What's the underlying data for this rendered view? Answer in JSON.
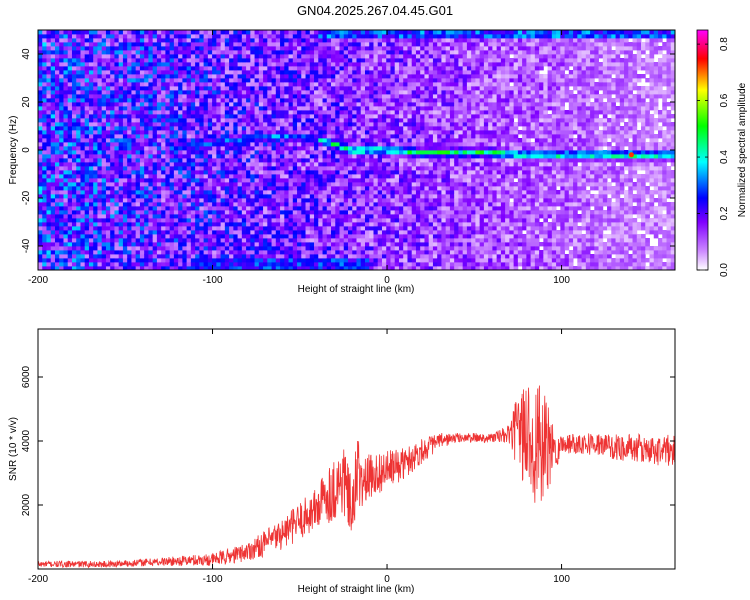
{
  "title": "GN04.2025.267.04.45.G01",
  "chart_data": [
    {
      "type": "heatmap",
      "xlabel": "Height of straight line (km)",
      "ylabel": "Frequency (Hz)",
      "xlim": [
        -200,
        165
      ],
      "ylim": [
        -50,
        50
      ],
      "xticks": [
        -200,
        -100,
        0,
        100
      ],
      "yticks": [
        -40,
        -20,
        0,
        20,
        40
      ],
      "colorbar": {
        "label": "Normalized spectral amplitude",
        "range": [
          0,
          0.85
        ],
        "ticks": [
          0.0,
          0.2,
          0.4,
          0.6,
          0.8
        ],
        "tick_labels": [
          "0.0",
          "0.2",
          "0.4",
          "0.6",
          "0.8"
        ],
        "colors": [
          "#ffffff",
          "#8000ff",
          "#0000ff",
          "#00ffff",
          "#00ff00",
          "#ffff00",
          "#ff0000",
          "#ff00ff"
        ]
      },
      "ridge": {
        "description_points_height_km": [
          -120,
          -100,
          -80,
          -60,
          -40,
          -20,
          0,
          20,
          40,
          60,
          80,
          100,
          120,
          140,
          165
        ],
        "frequency_hz": [
          1,
          3,
          5,
          6,
          5,
          0,
          0,
          -1,
          -1,
          -1,
          -2,
          -2,
          -2,
          -2,
          -2
        ]
      },
      "edge_bands_hz": [
        48,
        -48
      ]
    },
    {
      "type": "line",
      "xlabel": "Height of straight line (km)",
      "ylabel": "SNR (10 * v/v)",
      "xlim": [
        -200,
        165
      ],
      "ylim": [
        0,
        7500
      ],
      "xticks": [
        -200,
        -100,
        0,
        100
      ],
      "yticks": [
        2000,
        4000,
        6000
      ],
      "line_color": "#ee3333",
      "series": [
        {
          "x": [
            -200,
            -180,
            -160,
            -140,
            -120,
            -100,
            -90,
            -80,
            -70,
            -60,
            -50,
            -40,
            -35,
            -30,
            -25,
            -20,
            -15,
            -10,
            0,
            10,
            20,
            30,
            40,
            50,
            60,
            70,
            75,
            80,
            85,
            90,
            95,
            100,
            110,
            120,
            130,
            140,
            150,
            160,
            165
          ],
          "values": [
            150,
            150,
            150,
            200,
            250,
            300,
            400,
            550,
            800,
            1100,
            1500,
            1900,
            2300,
            2500,
            2800,
            1800,
            2600,
            2900,
            3100,
            3300,
            3700,
            4000,
            4100,
            4100,
            4100,
            4200,
            4300,
            4200,
            4000,
            3700,
            3700,
            3900,
            3950,
            3900,
            3800,
            3800,
            3700,
            3700,
            3700
          ],
          "noise_amplitude": [
            100,
            100,
            100,
            120,
            150,
            200,
            250,
            300,
            400,
            500,
            600,
            700,
            900,
            1000,
            1200,
            900,
            800,
            700,
            600,
            500,
            400,
            250,
            150,
            150,
            150,
            300,
            1200,
            1800,
            2000,
            1800,
            900,
            300,
            350,
            350,
            400,
            450,
            450,
            500,
            500
          ]
        }
      ]
    }
  ]
}
